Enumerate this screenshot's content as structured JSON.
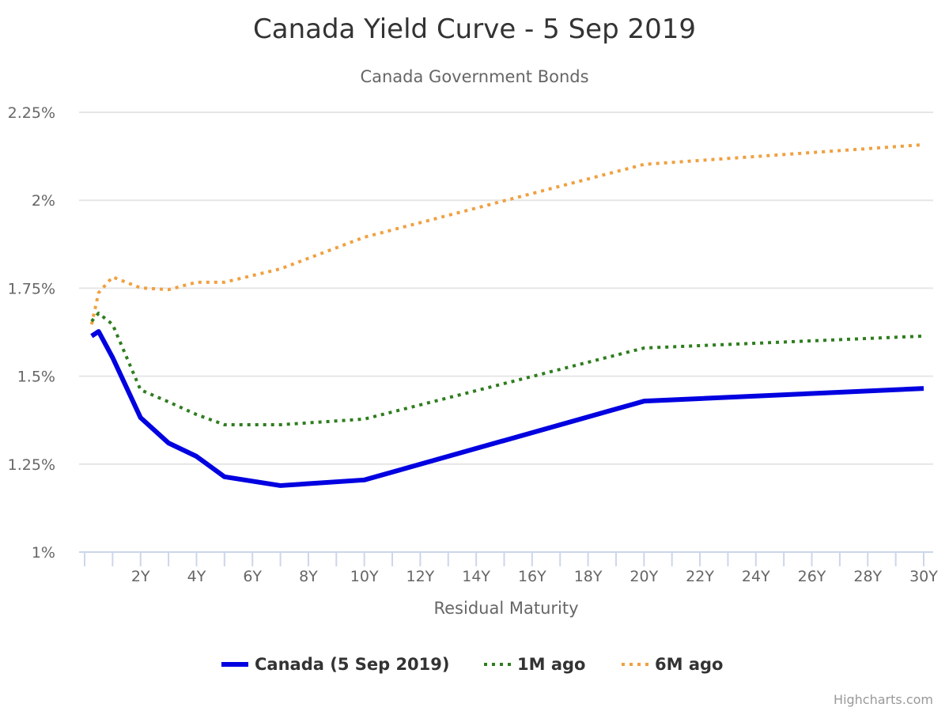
{
  "chart_data": {
    "type": "line",
    "title": "Canada Yield Curve - 5 Sep 2019",
    "subtitle": "Canada Government Bonds",
    "xlabel": "Residual Maturity",
    "ylabel": "",
    "xlim": [
      0,
      30
    ],
    "ylim": [
      1.0,
      2.25
    ],
    "grid": true,
    "legend_placement": "bottom",
    "x_ticks": [
      2,
      4,
      6,
      8,
      10,
      12,
      14,
      16,
      18,
      20,
      22,
      24,
      26,
      28,
      30
    ],
    "x_tick_labels": [
      "2Y",
      "4Y",
      "6Y",
      "8Y",
      "10Y",
      "12Y",
      "14Y",
      "16Y",
      "18Y",
      "20Y",
      "22Y",
      "24Y",
      "26Y",
      "28Y",
      "30Y"
    ],
    "y_ticks": [
      1.0,
      1.25,
      1.5,
      1.75,
      2.0,
      2.25
    ],
    "y_tick_labels": [
      "1%",
      "1.25%",
      "1.5%",
      "1.75%",
      "2%",
      "2.25%"
    ],
    "x": [
      0.25,
      0.5,
      1,
      2,
      3,
      4,
      5,
      7,
      10,
      20,
      30
    ],
    "series": [
      {
        "name": "Canada (5 Sep 2019)",
        "color": "#0000e0",
        "style": "solid",
        "values": [
          1.614,
          1.627,
          1.553,
          1.382,
          1.31,
          1.272,
          1.214,
          1.189,
          1.205,
          1.429,
          1.465
        ]
      },
      {
        "name": "1M ago",
        "color": "#2e7d1e",
        "style": "dotted",
        "values": [
          1.656,
          1.679,
          1.647,
          1.461,
          1.427,
          1.391,
          1.362,
          1.362,
          1.378,
          1.58,
          1.614
        ]
      },
      {
        "name": "6M ago",
        "color": "#f0a040",
        "style": "dotted",
        "values": [
          1.647,
          1.737,
          1.782,
          1.751,
          1.746,
          1.767,
          1.767,
          1.805,
          1.895,
          2.102,
          2.158
        ]
      }
    ]
  },
  "credits": "Highcharts.com"
}
